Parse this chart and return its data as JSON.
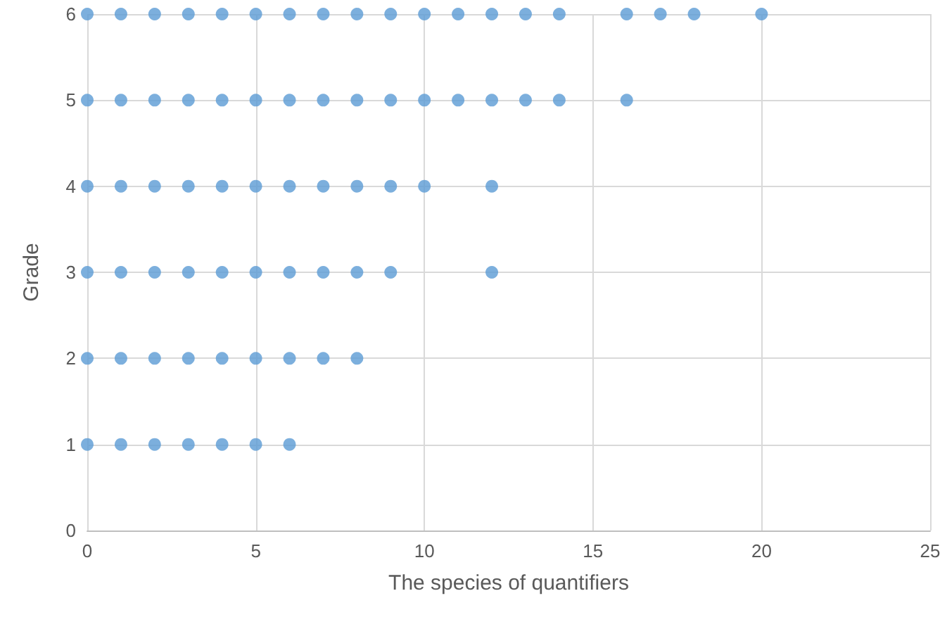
{
  "chart_data": {
    "type": "scatter",
    "xlabel": "The species of quantifiers",
    "ylabel": "Grade",
    "x": [
      0,
      1,
      2,
      3,
      4,
      5,
      6,
      7,
      8,
      9,
      10,
      11,
      12,
      13,
      14,
      16,
      17,
      18,
      20,
      0,
      1,
      2,
      3,
      4,
      5,
      6,
      7,
      8,
      9,
      10,
      11,
      12,
      13,
      14,
      16,
      0,
      1,
      2,
      3,
      4,
      5,
      6,
      7,
      8,
      9,
      10,
      12,
      0,
      1,
      2,
      3,
      4,
      5,
      6,
      7,
      8,
      9,
      12,
      0,
      1,
      2,
      3,
      4,
      5,
      6,
      7,
      8,
      0,
      1,
      2,
      3,
      4,
      5,
      6
    ],
    "series": [
      {
        "color": "#5b9bd5",
        "values": [
          6,
          6,
          6,
          6,
          6,
          6,
          6,
          6,
          6,
          6,
          6,
          6,
          6,
          6,
          6,
          6,
          6,
          6,
          6,
          5,
          5,
          5,
          5,
          5,
          5,
          5,
          5,
          5,
          5,
          5,
          5,
          5,
          5,
          5,
          5,
          4,
          4,
          4,
          4,
          4,
          4,
          4,
          4,
          4,
          4,
          4,
          4,
          3,
          3,
          3,
          3,
          3,
          3,
          3,
          3,
          3,
          3,
          3,
          2,
          2,
          2,
          2,
          2,
          2,
          2,
          2,
          2,
          1,
          1,
          1,
          1,
          1,
          1,
          1
        ]
      }
    ],
    "xlim": [
      0,
      25
    ],
    "xticks": [
      0,
      5,
      10,
      15,
      20,
      25
    ],
    "ylim": [
      0,
      6
    ],
    "yticks": [
      0,
      1,
      2,
      3,
      4,
      5,
      6
    ],
    "grid": true,
    "marker": "circle"
  }
}
